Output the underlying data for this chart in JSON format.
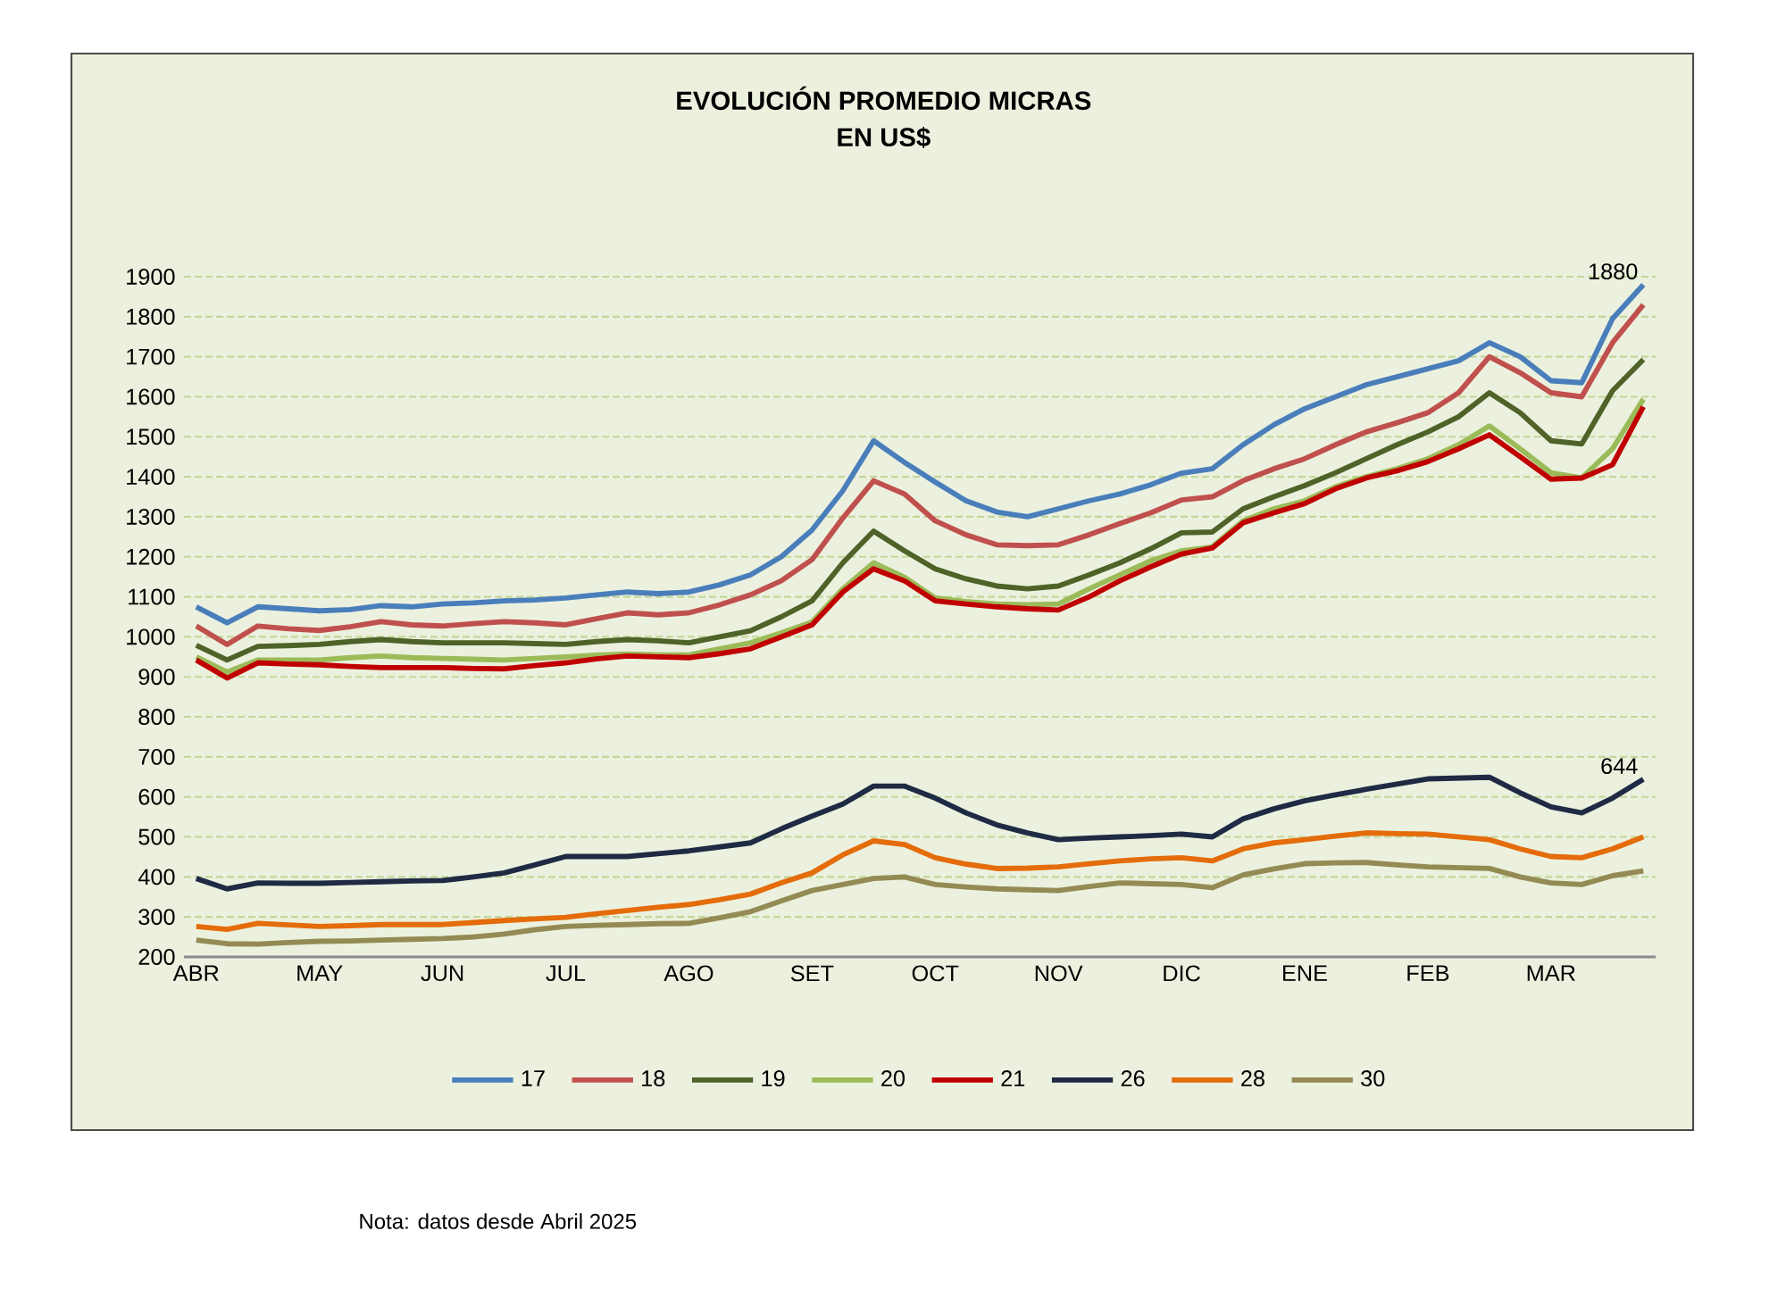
{
  "chart_data": {
    "type": "line",
    "title": "EVOLUCIÓN PROMEDIO MICRAS",
    "subtitle": "EN US$",
    "categories": [
      "ABR",
      null,
      null,
      null,
      "MAY",
      null,
      null,
      null,
      "JUN",
      null,
      null,
      null,
      "JUL",
      null,
      null,
      null,
      "AGO",
      null,
      null,
      null,
      "SET",
      null,
      null,
      null,
      "OCT",
      null,
      null,
      null,
      "NOV",
      null,
      null,
      null,
      "DIC",
      null,
      null,
      null,
      "ENE",
      null,
      null,
      null,
      "FEB",
      null,
      null,
      null,
      "MAR",
      null,
      null,
      null
    ],
    "series": [
      {
        "name": "17",
        "color": "#4a7ebb",
        "values": [
          1075,
          1035,
          1075,
          1070,
          1065,
          1068,
          1078,
          1075,
          1082,
          1085,
          1090,
          1092,
          1097,
          1105,
          1112,
          1108,
          1112,
          1130,
          1155,
          1200,
          1267,
          1365,
          1490,
          1436,
          1387,
          1340,
          1312,
          1300,
          1320,
          1340,
          1357,
          1380,
          1409,
          1420,
          1480,
          1530,
          1570,
          1600,
          1630,
          1650,
          1670,
          1690,
          1735,
          1700,
          1640,
          1635,
          1795,
          1880
        ]
      },
      {
        "name": "18",
        "color": "#c0504d",
        "values": [
          1027,
          981,
          1027,
          1020,
          1016,
          1025,
          1038,
          1030,
          1027,
          1033,
          1038,
          1035,
          1030,
          1045,
          1060,
          1055,
          1060,
          1080,
          1105,
          1140,
          1193,
          1297,
          1390,
          1357,
          1290,
          1255,
          1230,
          1228,
          1230,
          1255,
          1283,
          1310,
          1342,
          1350,
          1390,
          1420,
          1445,
          1480,
          1512,
          1535,
          1560,
          1610,
          1700,
          1660,
          1610,
          1600,
          1735,
          1830
        ]
      },
      {
        "name": "19",
        "color": "#4f6228",
        "values": [
          979,
          942,
          976,
          978,
          981,
          988,
          993,
          988,
          985,
          985,
          985,
          983,
          981,
          988,
          993,
          990,
          985,
          1000,
          1015,
          1050,
          1090,
          1185,
          1264,
          1215,
          1170,
          1145,
          1127,
          1120,
          1127,
          1155,
          1185,
          1220,
          1260,
          1262,
          1320,
          1350,
          1378,
          1410,
          1445,
          1480,
          1512,
          1550,
          1610,
          1560,
          1490,
          1482,
          1615,
          1693
        ]
      },
      {
        "name": "20",
        "color": "#9bbb59",
        "values": [
          950,
          912,
          942,
          942,
          942,
          948,
          952,
          948,
          946,
          944,
          942,
          946,
          950,
          954,
          957,
          955,
          955,
          970,
          985,
          1010,
          1037,
          1120,
          1185,
          1149,
          1097,
          1088,
          1082,
          1080,
          1082,
          1120,
          1155,
          1190,
          1215,
          1225,
          1290,
          1320,
          1340,
          1375,
          1400,
          1420,
          1445,
          1480,
          1527,
          1470,
          1410,
          1397,
          1470,
          1594
        ]
      },
      {
        "name": "21",
        "color": "#c00000",
        "values": [
          942,
          897,
          935,
          932,
          930,
          926,
          923,
          923,
          923,
          921,
          920,
          928,
          935,
          945,
          952,
          950,
          948,
          958,
          970,
          1000,
          1030,
          1112,
          1170,
          1140,
          1090,
          1082,
          1075,
          1070,
          1067,
          1100,
          1140,
          1175,
          1207,
          1222,
          1285,
          1310,
          1333,
          1370,
          1397,
          1415,
          1438,
          1470,
          1505,
          1450,
          1394,
          1397,
          1430,
          1575
        ]
      },
      {
        "name": "26",
        "color": "#1f2a44",
        "values": [
          396,
          370,
          385,
          384,
          384,
          386,
          388,
          390,
          391,
          400,
          410,
          430,
          451,
          451,
          451,
          458,
          465,
          475,
          485,
          520,
          552,
          582,
          627,
          627,
          597,
          560,
          530,
          510,
          493,
          497,
          500,
          503,
          507,
          500,
          545,
          570,
          590,
          605,
          619,
          632,
          645,
          647,
          649,
          610,
          575,
          560,
          597,
          644
        ]
      },
      {
        "name": "28",
        "color": "#e46c0a",
        "values": [
          276,
          269,
          284,
          280,
          276,
          278,
          281,
          281,
          281,
          286,
          291,
          295,
          299,
          308,
          316,
          324,
          331,
          343,
          357,
          385,
          410,
          455,
          490,
          481,
          448,
          432,
          421,
          422,
          425,
          433,
          440,
          445,
          448,
          440,
          470,
          485,
          493,
          502,
          510,
          508,
          507,
          500,
          493,
          470,
          451,
          448,
          470,
          500
        ]
      },
      {
        "name": "30",
        "color": "#948a54",
        "values": [
          242,
          233,
          232,
          236,
          239,
          240,
          242,
          244,
          246,
          250,
          257,
          268,
          276,
          279,
          281,
          283,
          284,
          298,
          313,
          340,
          366,
          381,
          396,
          400,
          381,
          375,
          370,
          368,
          366,
          376,
          385,
          383,
          381,
          373,
          405,
          420,
          433,
          435,
          436,
          430,
          425,
          423,
          421,
          400,
          385,
          381,
          403,
          415
        ]
      }
    ],
    "ylim": [
      200,
      1900
    ],
    "yticks": [
      200,
      300,
      400,
      500,
      600,
      700,
      800,
      900,
      1000,
      1100,
      1200,
      1300,
      1400,
      1500,
      1600,
      1700,
      1800,
      1900
    ],
    "grid": "y",
    "legend": "bottom",
    "marker": "none",
    "line_style": "solid",
    "annotations": [
      "1880",
      "644",
      "Nota: datos desde Abril 2025"
    ]
  }
}
